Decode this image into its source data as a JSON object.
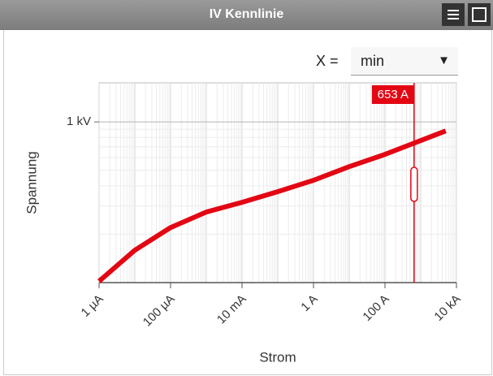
{
  "header": {
    "title": "IV Kennlinie"
  },
  "selector": {
    "label": "X =",
    "value": "min"
  },
  "chart_data": {
    "type": "line",
    "xlabel": "Strom",
    "ylabel": "Spannung",
    "x": [
      1e-06,
      1e-05,
      0.0001,
      0.001,
      0.01,
      0.1,
      1,
      10,
      100,
      1000,
      5000
    ],
    "values": [
      102,
      159,
      220,
      275,
      316,
      368,
      433,
      527,
      628,
      765,
      879
    ],
    "color": "#e30613",
    "xlog": true,
    "ylog": true,
    "minor_grid": true,
    "xlim": [
      1e-06,
      10000
    ],
    "ylim": [
      100,
      1750
    ],
    "xticks": [
      {
        "value": 1e-06,
        "label": "1 µA"
      },
      {
        "value": 0.0001,
        "label": "100 µA"
      },
      {
        "value": 0.01,
        "label": "10 mA"
      },
      {
        "value": 1,
        "label": "1 A"
      },
      {
        "value": 100,
        "label": "100 A"
      },
      {
        "value": 10000,
        "label": "10 kA"
      }
    ],
    "yticks": [
      {
        "value": 1000,
        "label": "1 kV"
      }
    ],
    "marker": {
      "x": 653,
      "label": "653 A"
    }
  }
}
